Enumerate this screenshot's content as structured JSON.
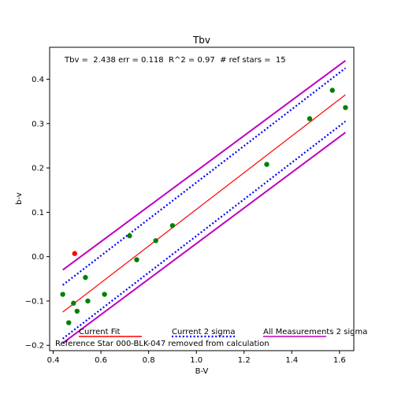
{
  "chart_data": {
    "type": "scatter",
    "title": "Tbv",
    "xlabel": "B-V",
    "ylabel": "b-v",
    "xlim": [
      0.385,
      1.66
    ],
    "ylim": [
      -0.212,
      0.472
    ],
    "xticks": [
      0.4,
      0.6,
      0.8,
      1.0,
      1.2,
      1.4,
      1.6
    ],
    "xtick_labels": [
      "0.4",
      "0.6",
      "0.8",
      "1.0",
      "1.2",
      "1.4",
      "1.6"
    ],
    "yticks": [
      -0.2,
      -0.1,
      0.0,
      0.1,
      0.2,
      0.3,
      0.4
    ],
    "ytick_labels": [
      "−0.2",
      "−0.1",
      "0.0",
      "0.1",
      "0.2",
      "0.3",
      "0.4"
    ],
    "stats_text": "Tbv =  2.438 err = 0.118  R^2 = 0.97  # ref stars =  15",
    "grid": false,
    "series": [
      {
        "name": "",
        "color": "#008000",
        "x": [
          0.44,
          0.465,
          0.485,
          0.5,
          0.535,
          0.545,
          0.615,
          0.72,
          0.75,
          0.83,
          0.9,
          1.295,
          1.475,
          1.57,
          1.625
        ],
        "y": [
          -0.085,
          -0.149,
          -0.105,
          -0.123,
          -0.047,
          -0.1,
          -0.085,
          0.047,
          -0.007,
          0.036,
          0.07,
          0.208,
          0.311,
          0.375,
          0.336
        ]
      },
      {
        "name": "",
        "color": "#ff0000",
        "x": [
          0.49
        ],
        "y": [
          0.007
        ]
      }
    ],
    "lines": [
      {
        "name": "Current Fit",
        "color": "#ff0000",
        "style": "solid",
        "x": [
          0.44,
          1.625
        ],
        "y": [
          -0.125,
          0.365
        ]
      },
      {
        "name": "Current 2 sigma",
        "color": "#0000ff",
        "style": "dotted",
        "x": [
          0.44,
          1.625
        ],
        "y": [
          -0.064,
          0.425
        ]
      },
      {
        "name": "Current 2 sigma",
        "color": "#0000ff",
        "style": "dotted",
        "x": [
          0.44,
          1.625
        ],
        "y": [
          -0.185,
          0.305
        ]
      },
      {
        "name": "All Measurements 2 sigma",
        "color": "#bf00bf",
        "style": "solid",
        "x": [
          0.44,
          1.625
        ],
        "y": [
          -0.03,
          0.442
        ]
      },
      {
        "name": "All Measurements 2 sigma",
        "color": "#bf00bf",
        "style": "solid",
        "x": [
          0.44,
          1.625
        ],
        "y": [
          -0.195,
          0.28
        ]
      }
    ],
    "legend": [
      {
        "label": "Current Fit",
        "color": "#ff0000",
        "style": "solid"
      },
      {
        "label": "Current 2 sigma",
        "color": "#0000ff",
        "style": "dotted"
      },
      {
        "label": "All Measurements 2 sigma",
        "color": "#bf00bf",
        "style": "solid"
      }
    ],
    "legend_position": "lower-left",
    "annotation": "Reference Star 000-BLK-047 removed from calculation"
  }
}
